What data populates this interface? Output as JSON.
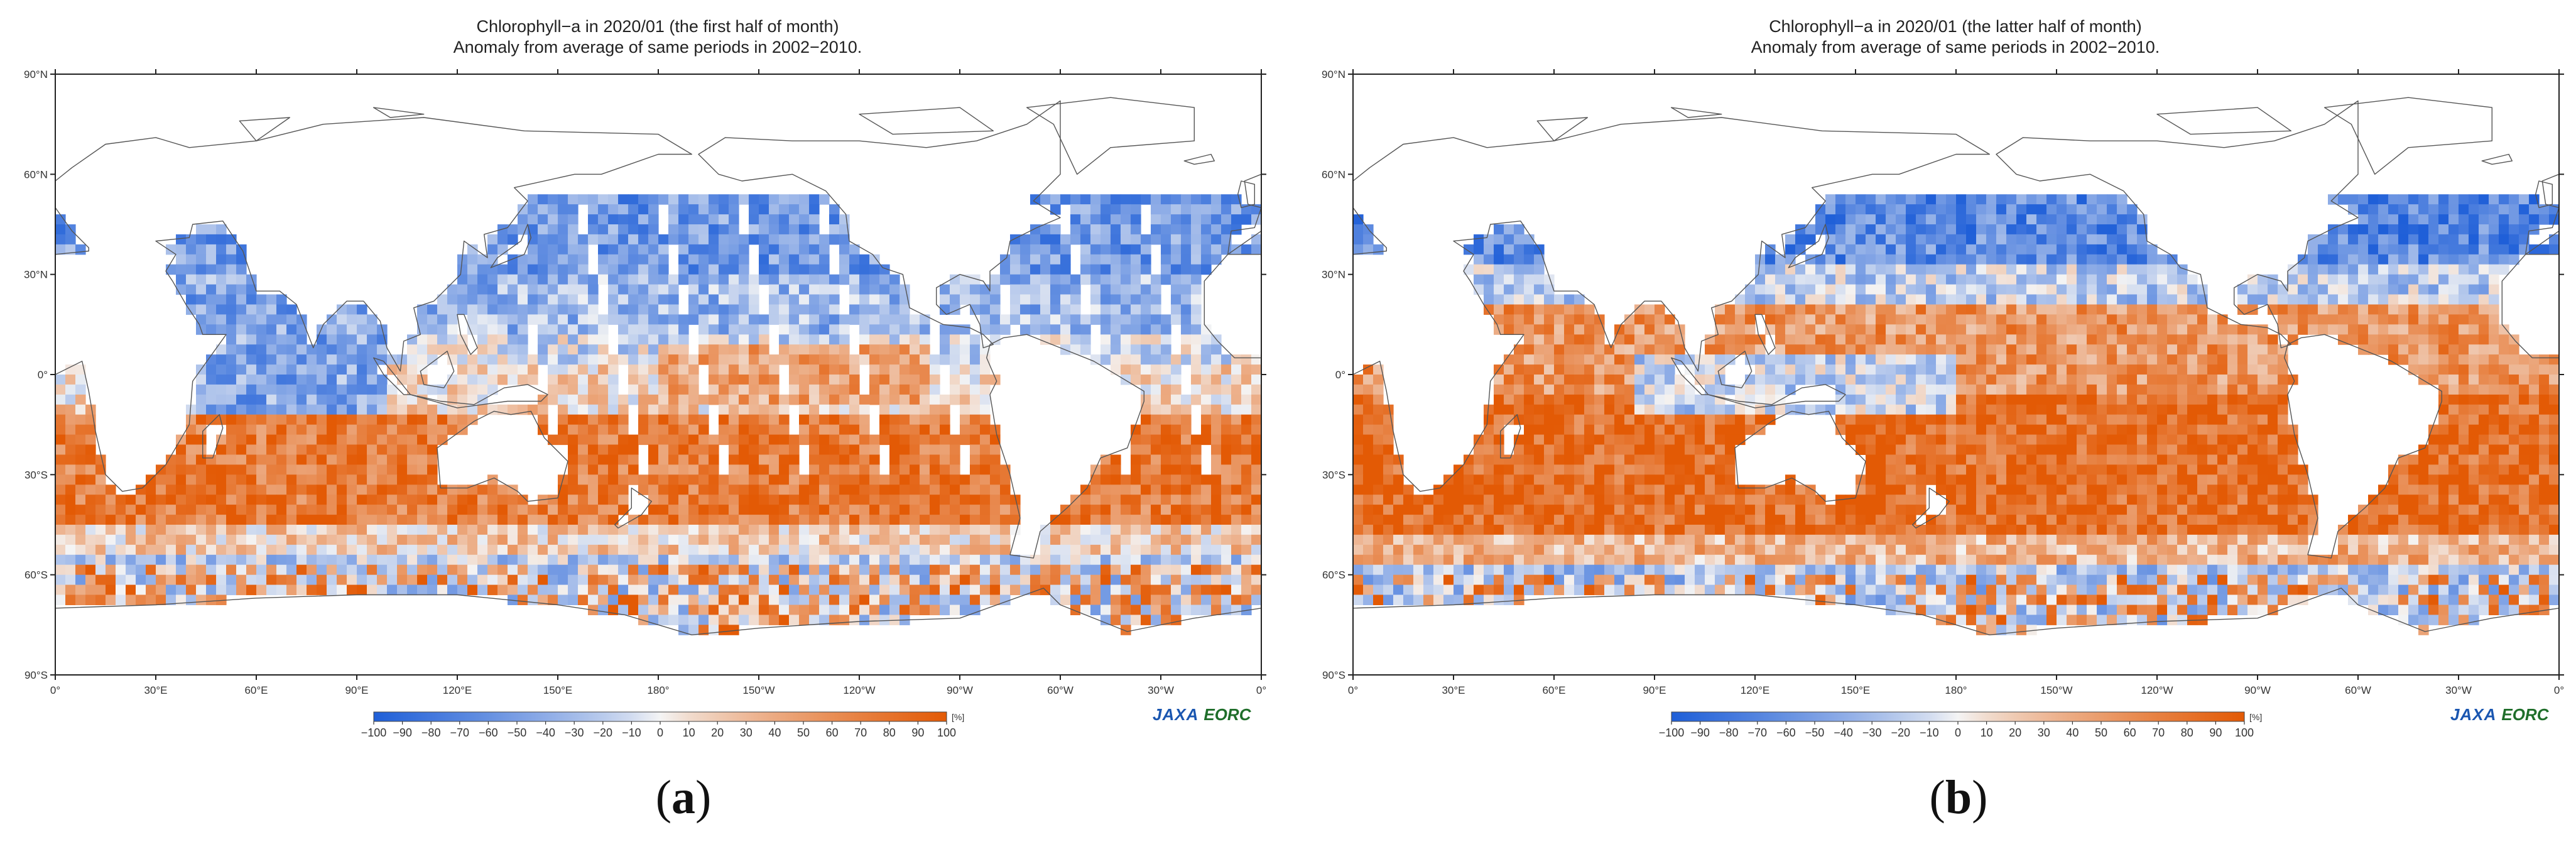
{
  "panels": [
    {
      "id": "a",
      "title_line1": "Chlorophyll−a in 2020/01 (the first half of month)",
      "title_line2": "Anomaly from average of same periods in 2002−2010.",
      "panel_label_open": "(",
      "panel_label_letter": "a",
      "panel_label_close": ")",
      "swath_gaps": true
    },
    {
      "id": "b",
      "title_line1": "Chlorophyll−a in 2020/01 (the latter half of month)",
      "title_line2": "Anomaly from average of same periods in 2002−2010.",
      "panel_label_open": "(",
      "panel_label_letter": "b",
      "panel_label_close": ")",
      "swath_gaps": false
    }
  ],
  "map": {
    "lat_labels": [
      "90°N",
      "60°N",
      "30°N",
      "0°",
      "30°S",
      "60°S",
      "90°S"
    ],
    "lon_labels": [
      "0°",
      "30°E",
      "60°E",
      "90°E",
      "120°E",
      "150°E",
      "180°",
      "150°W",
      "120°W",
      "90°W",
      "60°W",
      "30°W",
      "0°"
    ]
  },
  "colorbar": {
    "ticks": [
      "−100",
      "−90",
      "−80",
      "−70",
      "−60",
      "−50",
      "−40",
      "−30",
      "−20",
      "−10",
      "0",
      "10",
      "20",
      "30",
      "40",
      "50",
      "60",
      "70",
      "80",
      "90",
      "100"
    ],
    "unit": "[%]",
    "range": [
      -100,
      100
    ],
    "low_color": "#1f5fd8",
    "mid_color": "#f4f4f4",
    "high_color": "#e35a05"
  },
  "logo": {
    "jaxa": "JAXA",
    "eorc": "EORC"
  },
  "colors": {
    "land": "#ffffff",
    "no_data": "#ffffff",
    "anomaly_negative": "#2f79e6",
    "anomaly_positive": "#e35a05"
  }
}
